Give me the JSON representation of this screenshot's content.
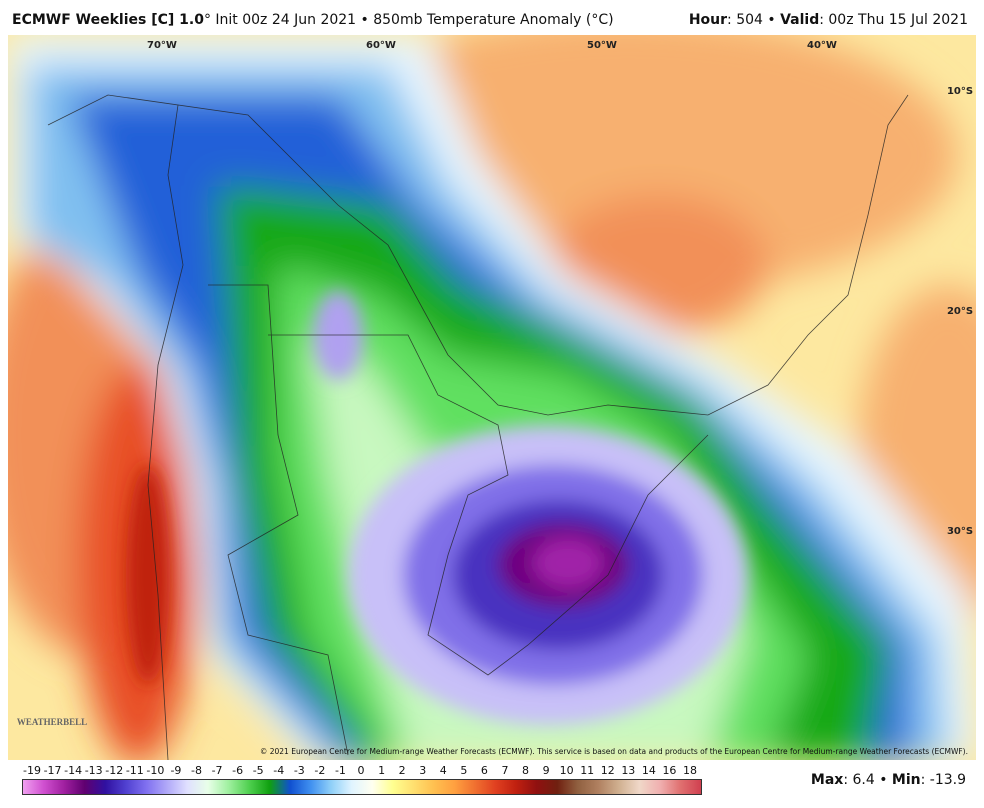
{
  "header": {
    "title_bold": "ECMWF Weeklies [C] 1.0",
    "title_rest": "° Init 00z 24 Jun 2021 • 850mb Temperature Anomaly (°C)",
    "hour_label": "Hour",
    "hour_value": ": 504 • ",
    "valid_label": "Valid",
    "valid_value": ": 00z Thu 15 Jul 2021"
  },
  "map": {
    "lon_labels": [
      "70°W",
      "60°W",
      "50°W",
      "40°W"
    ],
    "lat_labels": [
      "10°S",
      "20°S",
      "30°S"
    ],
    "copyright": "© 2021 European Centre for Medium-range Weather Forecasts (ECMWF). This service is based on data and products of the European Centre for Medium-range Weather Forecasts (ECMWF).",
    "logo": "WEATHERBELL"
  },
  "colorbar": {
    "labels": [
      "-19",
      "-17",
      "-14",
      "-13",
      "-12",
      "-11",
      "-10",
      "-9",
      "-8",
      "-7",
      "-6",
      "-5",
      "-4",
      "-3",
      "-2",
      "-1",
      "0",
      "1",
      "2",
      "3",
      "4",
      "5",
      "6",
      "7",
      "8",
      "9",
      "10",
      "11",
      "12",
      "13",
      "14",
      "16",
      "18"
    ]
  },
  "footer": {
    "max_label": "Max",
    "max_value": ": 6.4 • ",
    "min_label": "Min",
    "min_value": ": -13.9"
  }
}
